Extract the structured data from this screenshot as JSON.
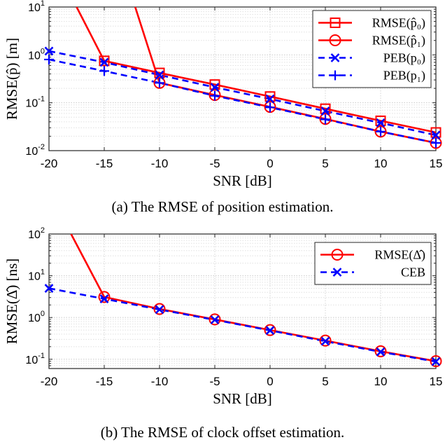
{
  "chart_data": [
    {
      "type": "line",
      "yscale": "log",
      "title": "",
      "xlabel": "SNR [dB]",
      "ylabel": "RMSE(p̂) [m]",
      "xlim": [
        -20,
        15
      ],
      "ylim": [
        0.01,
        10
      ],
      "x_ticks": [
        "-20",
        "-15",
        "-10",
        "-5",
        "0",
        "5",
        "10",
        "15"
      ],
      "y_ticks": [
        {
          "base": "10",
          "exp": "-2"
        },
        {
          "base": "10",
          "exp": "-1"
        },
        {
          "base": "10",
          "exp": "0"
        },
        {
          "base": "10",
          "exp": "1"
        }
      ],
      "grid": true,
      "legend_position": "top-right",
      "series": [
        {
          "name": "RMSE(p̂₀)",
          "color": "#ff0000",
          "dash": "solid",
          "marker": "square",
          "x": [
            -17.5,
            -15,
            -10,
            -5,
            0,
            5,
            10,
            15
          ],
          "y": [
            10,
            0.75,
            0.42,
            0.24,
            0.135,
            0.075,
            0.042,
            0.024
          ],
          "marker_mask": [
            false,
            true,
            true,
            true,
            true,
            true,
            true,
            true
          ]
        },
        {
          "name": "RMSE(p̂₁)",
          "color": "#ff0000",
          "dash": "solid",
          "marker": "circle",
          "x": [
            -12.2,
            -10,
            -5,
            0,
            5,
            10,
            15
          ],
          "y": [
            10,
            0.26,
            0.145,
            0.082,
            0.046,
            0.025,
            0.0145
          ],
          "marker_mask": [
            false,
            true,
            true,
            true,
            true,
            true,
            true
          ]
        },
        {
          "name": "PEB(p₀)",
          "color": "#0000ff",
          "dash": "dashed",
          "marker": "x",
          "x": [
            -20,
            -15,
            -10,
            -5,
            0,
            5,
            10,
            15
          ],
          "y": [
            1.2,
            0.7,
            0.38,
            0.21,
            0.12,
            0.067,
            0.038,
            0.021
          ]
        },
        {
          "name": "PEB(p₁)",
          "color": "#0000ff",
          "dash": "dashed",
          "marker": "plus",
          "x": [
            -20,
            -15,
            -10,
            -5,
            0,
            5,
            10,
            15
          ],
          "y": [
            0.8,
            0.46,
            0.26,
            0.14,
            0.08,
            0.045,
            0.025,
            0.0145
          ]
        }
      ],
      "caption": "(a) The RMSE of position estimation."
    },
    {
      "type": "line",
      "yscale": "log",
      "title": "",
      "xlabel": "SNR [dB]",
      "ylabel": "RMSE(Δ̂) [ns]",
      "xlim": [
        -20,
        15
      ],
      "ylim": [
        0.06,
        100
      ],
      "x_ticks": [
        "-20",
        "-15",
        "-10",
        "-5",
        "0",
        "5",
        "10",
        "15"
      ],
      "y_ticks": [
        {
          "base": "10",
          "exp": "-1"
        },
        {
          "base": "10",
          "exp": "0"
        },
        {
          "base": "10",
          "exp": "1"
        },
        {
          "base": "10",
          "exp": "2"
        }
      ],
      "grid": true,
      "legend_position": "top-right",
      "series": [
        {
          "name": "RMSE(Δ̂)",
          "color": "#ff0000",
          "dash": "solid",
          "marker": "circle",
          "x": [
            -18,
            -15,
            -10,
            -5,
            0,
            5,
            10,
            15
          ],
          "y": [
            100,
            3.1,
            1.6,
            0.9,
            0.5,
            0.28,
            0.155,
            0.09
          ],
          "marker_mask": [
            false,
            true,
            true,
            true,
            true,
            true,
            true,
            true
          ]
        },
        {
          "name": "CEB",
          "color": "#0000ff",
          "dash": "dashed",
          "marker": "x",
          "x": [
            -20,
            -15,
            -10,
            -5,
            0,
            5,
            10,
            15
          ],
          "y": [
            5,
            2.8,
            1.55,
            0.88,
            0.49,
            0.27,
            0.15,
            0.088
          ]
        }
      ],
      "caption": "(b) The RMSE of clock offset estimation."
    }
  ]
}
